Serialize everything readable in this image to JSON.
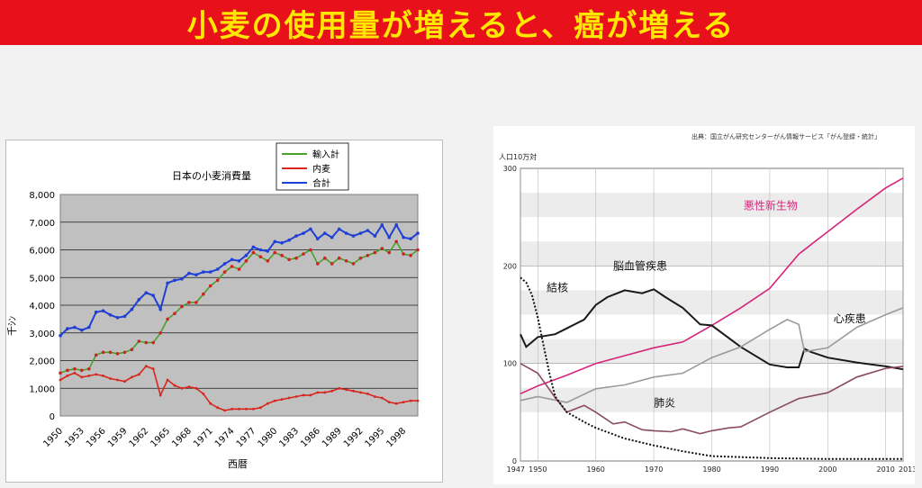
{
  "header": {
    "title": "小麦の使用量が増えると、癌が増える"
  },
  "colors": {
    "banner_bg": "#e8101a",
    "banner_text": "#ffe800"
  },
  "chart_data": [
    {
      "type": "line",
      "title": "日本の小麦消費量",
      "xlabel": "西暦",
      "ylabel": "千ｼﾝ",
      "ylim": [
        0,
        8000
      ],
      "yticks": [
        "0",
        "1,000",
        "2,000",
        "3,000",
        "4,000",
        "5,000",
        "6,000",
        "7,000",
        "8,000"
      ],
      "xticks": [
        "1950",
        "1953",
        "1956",
        "1959",
        "1962",
        "1965",
        "1968",
        "1971",
        "1974",
        "1977",
        "1980",
        "1983",
        "1986",
        "1989",
        "1992",
        "1995",
        "1998"
      ],
      "legend_position": "top-right",
      "grid": true,
      "series": [
        {
          "name": "輸入計",
          "color": "#4aa02c",
          "x": [
            1950,
            1951,
            1952,
            1953,
            1954,
            1955,
            1956,
            1957,
            1958,
            1959,
            1960,
            1961,
            1962,
            1963,
            1964,
            1965,
            1966,
            1967,
            1968,
            1969,
            1970,
            1971,
            1972,
            1973,
            1974,
            1975,
            1976,
            1977,
            1978,
            1979,
            1980,
            1981,
            1982,
            1983,
            1984,
            1985,
            1986,
            1987,
            1988,
            1989,
            1990,
            1991,
            1992,
            1993,
            1994,
            1995,
            1996,
            1997,
            1998,
            1999,
            2000
          ],
          "values": [
            1550,
            1650,
            1700,
            1650,
            1700,
            2200,
            2300,
            2300,
            2250,
            2300,
            2400,
            2700,
            2650,
            2650,
            3000,
            3500,
            3700,
            3950,
            4100,
            4100,
            4400,
            4700,
            4900,
            5200,
            5400,
            5300,
            5600,
            5900,
            5750,
            5600,
            5900,
            5800,
            5650,
            5700,
            5850,
            6000,
            5500,
            5700,
            5500,
            5700,
            5600,
            5500,
            5700,
            5800,
            5900,
            6050,
            5900,
            6300,
            5850,
            5800,
            6000
          ]
        },
        {
          "name": "内麦",
          "color": "#d7261e",
          "x": [
            1950,
            1951,
            1952,
            1953,
            1954,
            1955,
            1956,
            1957,
            1958,
            1959,
            1960,
            1961,
            1962,
            1963,
            1964,
            1965,
            1966,
            1967,
            1968,
            1969,
            1970,
            1971,
            1972,
            1973,
            1974,
            1975,
            1976,
            1977,
            1978,
            1979,
            1980,
            1981,
            1982,
            1983,
            1984,
            1985,
            1986,
            1987,
            1988,
            1989,
            1990,
            1991,
            1992,
            1993,
            1994,
            1995,
            1996,
            1997,
            1998,
            1999,
            2000
          ],
          "values": [
            1300,
            1450,
            1550,
            1400,
            1450,
            1500,
            1450,
            1350,
            1300,
            1250,
            1400,
            1500,
            1800,
            1700,
            750,
            1300,
            1100,
            1000,
            1050,
            1000,
            800,
            450,
            300,
            200,
            250,
            250,
            250,
            250,
            300,
            450,
            550,
            600,
            650,
            700,
            750,
            750,
            850,
            850,
            900,
            1000,
            950,
            900,
            850,
            800,
            700,
            650,
            500,
            450,
            500,
            550,
            550
          ]
        },
        {
          "name": "合計",
          "color": "#1f3fd6",
          "x": [
            1950,
            1951,
            1952,
            1953,
            1954,
            1955,
            1956,
            1957,
            1958,
            1959,
            1960,
            1961,
            1962,
            1963,
            1964,
            1965,
            1966,
            1967,
            1968,
            1969,
            1970,
            1971,
            1972,
            1973,
            1974,
            1975,
            1976,
            1977,
            1978,
            1979,
            1980,
            1981,
            1982,
            1983,
            1984,
            1985,
            1986,
            1987,
            1988,
            1989,
            1990,
            1991,
            1992,
            1993,
            1994,
            1995,
            1996,
            1997,
            1998,
            1999,
            2000
          ],
          "values": [
            2900,
            3150,
            3200,
            3100,
            3200,
            3750,
            3800,
            3650,
            3550,
            3600,
            3850,
            4200,
            4450,
            4350,
            3850,
            4800,
            4900,
            4950,
            5150,
            5100,
            5200,
            5200,
            5300,
            5500,
            5650,
            5600,
            5800,
            6100,
            6000,
            5950,
            6300,
            6250,
            6350,
            6500,
            6600,
            6750,
            6400,
            6600,
            6450,
            6750,
            6600,
            6500,
            6600,
            6700,
            6500,
            6900,
            6450,
            6900,
            6450,
            6400,
            6600
          ]
        }
      ]
    },
    {
      "type": "line",
      "source": "出典：国立がん研究センターがん情報サービス「がん登録・統計」",
      "ylabel": "人口10万対",
      "ylim": [
        0,
        300
      ],
      "yticks": [
        "0",
        "100",
        "200",
        "300"
      ],
      "xlim": [
        1947,
        2013
      ],
      "xticks": [
        "1947",
        "1950",
        "1960",
        "1970",
        "1980",
        "1990",
        "2000",
        "2010",
        "2013"
      ],
      "grid": true,
      "series": [
        {
          "name": "悪性新生物",
          "color": "#d6247a",
          "x": [
            1947,
            1950,
            1955,
            1960,
            1965,
            1970,
            1975,
            1980,
            1985,
            1990,
            1995,
            1998,
            2000,
            2005,
            2010,
            2013
          ],
          "values": [
            69,
            77,
            88,
            100,
            108,
            116,
            122,
            139,
            157,
            177,
            212,
            226,
            235,
            258,
            280,
            290
          ]
        },
        {
          "name": "脳血管疾患",
          "color": "#1a1a1a",
          "x": [
            1947,
            1948,
            1950,
            1953,
            1955,
            1958,
            1960,
            1962,
            1965,
            1968,
            1970,
            1972,
            1975,
            1978,
            1980,
            1985,
            1990,
            1993,
            1995,
            1996,
            1997,
            2000,
            2005,
            2010,
            2013
          ],
          "values": [
            130,
            117,
            127,
            130,
            136,
            145,
            160,
            168,
            175,
            172,
            176,
            168,
            157,
            140,
            139,
            117,
            99,
            96,
            96,
            115,
            112,
            106,
            101,
            97,
            94
          ]
        },
        {
          "name": "心疾患",
          "color": "#9a9a9a",
          "x": [
            1947,
            1950,
            1955,
            1960,
            1965,
            1970,
            1975,
            1980,
            1985,
            1990,
            1993,
            1995,
            1996,
            2000,
            2005,
            2010,
            2013
          ],
          "values": [
            62,
            66,
            60,
            74,
            78,
            86,
            90,
            106,
            117,
            135,
            145,
            140,
            112,
            116,
            137,
            150,
            157
          ]
        },
        {
          "name": "肺炎",
          "color": "#8a4a63",
          "x": [
            1947,
            1950,
            1953,
            1955,
            1958,
            1960,
            1963,
            1965,
            1968,
            1970,
            1973,
            1975,
            1978,
            1980,
            1983,
            1985,
            1990,
            1995,
            2000,
            2005,
            2010,
            2013
          ],
          "values": [
            100,
            90,
            65,
            50,
            57,
            50,
            38,
            40,
            32,
            31,
            30,
            33,
            28,
            31,
            34,
            35,
            50,
            64,
            70,
            86,
            95,
            97
          ]
        },
        {
          "name": "結核",
          "color": "#111111",
          "style": "dotted",
          "x": [
            1947,
            1948,
            1949,
            1950,
            1951,
            1952,
            1953,
            1955,
            1958,
            1960,
            1965,
            1970,
            1975,
            1980,
            1990,
            2000,
            2010,
            2013
          ],
          "values": [
            188,
            183,
            170,
            147,
            118,
            90,
            66,
            50,
            40,
            34,
            23,
            16,
            10,
            5,
            3,
            2,
            2,
            2
          ]
        }
      ]
    }
  ]
}
